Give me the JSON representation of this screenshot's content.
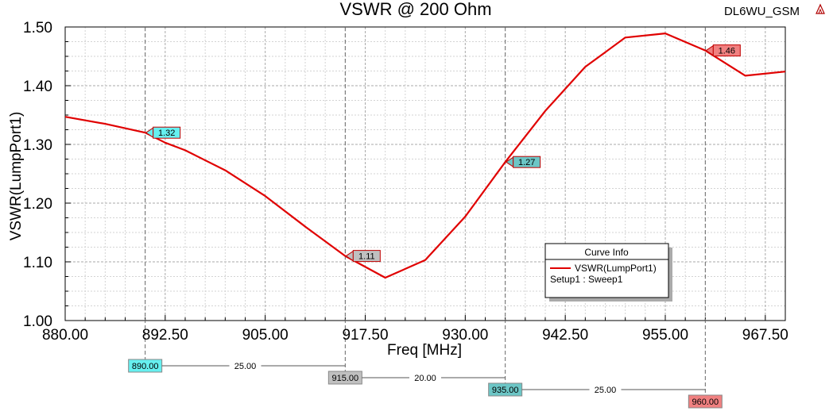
{
  "chart_data": {
    "type": "line",
    "title": "VSWR @ 200 Ohm",
    "xlabel": "Freq [MHz]",
    "ylabel": "VSWR(LumpPort1)",
    "xlim": [
      880,
      970
    ],
    "ylim": [
      1.0,
      1.5
    ],
    "x_ticks": [
      "880.00",
      "892.50",
      "905.00",
      "917.50",
      "930.00",
      "942.50",
      "955.00",
      "967.50"
    ],
    "y_ticks": [
      "1.00",
      "1.10",
      "1.20",
      "1.30",
      "1.40",
      "1.50"
    ],
    "grid": true,
    "series": [
      {
        "name": "VSWR(LumpPort1)",
        "color": "#e00000",
        "x": [
          880,
          885,
          890,
          892.5,
          895,
          900,
          905,
          910,
          915,
          920,
          925,
          930,
          935,
          940,
          945,
          950,
          955,
          960,
          965,
          970
        ],
        "y": [
          1.347,
          1.335,
          1.32,
          1.303,
          1.29,
          1.256,
          1.212,
          1.16,
          1.11,
          1.073,
          1.103,
          1.177,
          1.27,
          1.357,
          1.432,
          1.482,
          1.489,
          1.46,
          1.417,
          1.424
        ]
      }
    ],
    "markers": [
      {
        "x": 890,
        "y_label": "1.32",
        "x_label": "890.00",
        "color": "#66f0f0"
      },
      {
        "x": 915,
        "y_label": "1.11",
        "x_label": "915.00",
        "color": "#c0c0c0"
      },
      {
        "x": 935,
        "y_label": "1.27",
        "x_label": "935.00",
        "color": "#6cc6c6"
      },
      {
        "x": 960,
        "y_label": "1.46",
        "x_label": "960.00",
        "color": "#f08080"
      }
    ],
    "deltas": [
      "25.00",
      "20.00",
      "25.00"
    ],
    "legend": {
      "title": "Curve Info",
      "entry": "VSWR(LumpPort1)",
      "sub": "Setup1 : Sweep1",
      "placement": "bottom-right"
    }
  },
  "corner_label": "DL6WU_GSM",
  "corner_icon": "ansys-logo-icon"
}
